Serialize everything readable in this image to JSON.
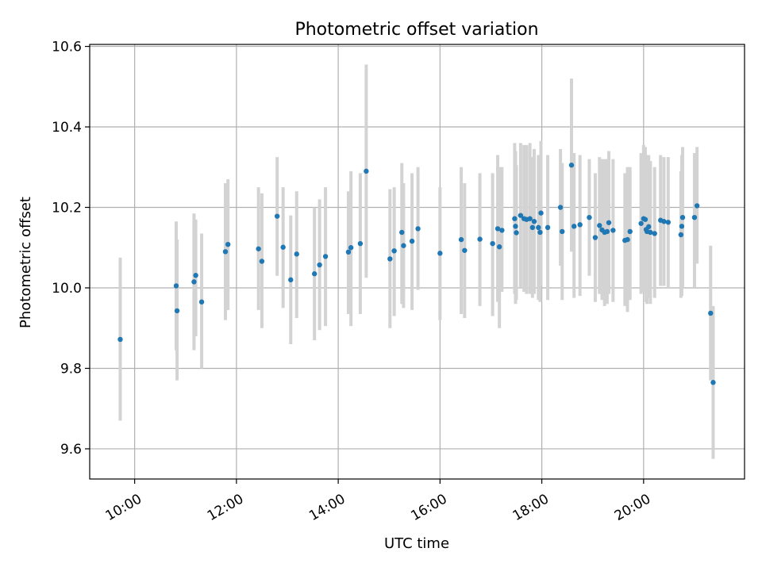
{
  "chart_data": {
    "type": "scatter",
    "title": "Photometric offset variation",
    "xlabel": "UTC time",
    "ylabel": "Photometric offset",
    "xlim": [
      "09:07",
      "21:59"
    ],
    "ylim": [
      9.525,
      10.605
    ],
    "x_ticks": [
      "10:00",
      "12:00",
      "14:00",
      "16:00",
      "18:00",
      "20:00"
    ],
    "y_ticks": [
      "9.6",
      "9.8",
      "10.0",
      "10.2",
      "10.4",
      "10.6"
    ],
    "grid": true,
    "colors": {
      "point": "#1f77b4",
      "error_bar": "#d3d3d3"
    },
    "series": [
      {
        "error_bars": true,
        "points": [
          {
            "x": "09:43",
            "y": 9.872,
            "lo": 9.67,
            "hi": 10.075
          },
          {
            "x": "10:49",
            "y": 10.005,
            "lo": 9.845,
            "hi": 10.165
          },
          {
            "x": "10:50",
            "y": 9.943,
            "lo": 9.77,
            "hi": 10.12
          },
          {
            "x": "11:10",
            "y": 10.015,
            "lo": 9.845,
            "hi": 10.185
          },
          {
            "x": "11:12",
            "y": 10.031,
            "lo": 9.88,
            "hi": 10.17
          },
          {
            "x": "11:19",
            "y": 9.965,
            "lo": 9.8,
            "hi": 10.135
          },
          {
            "x": "11:47",
            "y": 10.09,
            "lo": 9.92,
            "hi": 10.26
          },
          {
            "x": "11:50",
            "y": 10.108,
            "lo": 9.945,
            "hi": 10.27
          },
          {
            "x": "12:26",
            "y": 10.097,
            "lo": 9.945,
            "hi": 10.25
          },
          {
            "x": "12:30",
            "y": 10.066,
            "lo": 9.9,
            "hi": 10.235
          },
          {
            "x": "12:48",
            "y": 10.178,
            "lo": 10.03,
            "hi": 10.325
          },
          {
            "x": "12:55",
            "y": 10.101,
            "lo": 9.95,
            "hi": 10.25
          },
          {
            "x": "13:04",
            "y": 10.02,
            "lo": 9.86,
            "hi": 10.18
          },
          {
            "x": "13:11",
            "y": 10.084,
            "lo": 9.925,
            "hi": 10.24
          },
          {
            "x": "13:32",
            "y": 10.035,
            "lo": 9.87,
            "hi": 10.2
          },
          {
            "x": "13:38",
            "y": 10.057,
            "lo": 9.895,
            "hi": 10.22
          },
          {
            "x": "13:45",
            "y": 10.078,
            "lo": 9.905,
            "hi": 10.25
          },
          {
            "x": "14:12",
            "y": 10.089,
            "lo": 9.935,
            "hi": 10.24
          },
          {
            "x": "14:15",
            "y": 10.1,
            "lo": 9.905,
            "hi": 10.29
          },
          {
            "x": "14:26",
            "y": 10.11,
            "lo": 9.935,
            "hi": 10.285
          },
          {
            "x": "14:33",
            "y": 10.29,
            "lo": 10.025,
            "hi": 10.555
          },
          {
            "x": "15:01",
            "y": 10.072,
            "lo": 9.9,
            "hi": 10.245
          },
          {
            "x": "15:06",
            "y": 10.092,
            "lo": 9.93,
            "hi": 10.25
          },
          {
            "x": "15:15",
            "y": 10.138,
            "lo": 9.96,
            "hi": 10.31
          },
          {
            "x": "15:17",
            "y": 10.105,
            "lo": 9.95,
            "hi": 10.26
          },
          {
            "x": "15:27",
            "y": 10.116,
            "lo": 9.945,
            "hi": 10.285
          },
          {
            "x": "15:34",
            "y": 10.147,
            "lo": 9.995,
            "hi": 10.3
          },
          {
            "x": "16:00",
            "y": 10.086,
            "lo": 9.92,
            "hi": 10.25
          },
          {
            "x": "16:25",
            "y": 10.12,
            "lo": 9.935,
            "hi": 10.3
          },
          {
            "x": "16:29",
            "y": 10.093,
            "lo": 9.925,
            "hi": 10.26
          },
          {
            "x": "16:47",
            "y": 10.121,
            "lo": 9.955,
            "hi": 10.285
          },
          {
            "x": "17:02",
            "y": 10.11,
            "lo": 9.93,
            "hi": 10.285
          },
          {
            "x": "17:08",
            "y": 10.147,
            "lo": 9.965,
            "hi": 10.33
          },
          {
            "x": "17:10",
            "y": 10.102,
            "lo": 9.9,
            "hi": 10.3
          },
          {
            "x": "17:13",
            "y": 10.143,
            "lo": 9.99,
            "hi": 10.3
          },
          {
            "x": "17:28",
            "y": 10.172,
            "lo": 9.985,
            "hi": 10.36
          },
          {
            "x": "17:29",
            "y": 10.153,
            "lo": 9.96,
            "hi": 10.34
          },
          {
            "x": "17:30",
            "y": 10.137,
            "lo": 9.97,
            "hi": 10.305
          },
          {
            "x": "17:35",
            "y": 10.18,
            "lo": 10.0,
            "hi": 10.36
          },
          {
            "x": "17:39",
            "y": 10.172,
            "lo": 9.99,
            "hi": 10.355
          },
          {
            "x": "17:42",
            "y": 10.17,
            "lo": 9.985,
            "hi": 10.355
          },
          {
            "x": "17:46",
            "y": 10.172,
            "lo": 9.985,
            "hi": 10.36
          },
          {
            "x": "17:49",
            "y": 10.15,
            "lo": 9.975,
            "hi": 10.325
          },
          {
            "x": "17:51",
            "y": 10.165,
            "lo": 9.985,
            "hi": 10.345
          },
          {
            "x": "17:56",
            "y": 10.15,
            "lo": 9.97,
            "hi": 10.33
          },
          {
            "x": "17:58",
            "y": 10.138,
            "lo": 9.965,
            "hi": 10.31
          },
          {
            "x": "17:59",
            "y": 10.186,
            "lo": 10.005,
            "hi": 10.365
          },
          {
            "x": "18:07",
            "y": 10.15,
            "lo": 9.97,
            "hi": 10.33
          },
          {
            "x": "18:22",
            "y": 10.2,
            "lo": 10.055,
            "hi": 10.345
          },
          {
            "x": "18:24",
            "y": 10.14,
            "lo": 9.97,
            "hi": 10.31
          },
          {
            "x": "18:35",
            "y": 10.305,
            "lo": 10.09,
            "hi": 10.52
          },
          {
            "x": "18:38",
            "y": 10.153,
            "lo": 9.975,
            "hi": 10.335
          },
          {
            "x": "18:45",
            "y": 10.157,
            "lo": 9.98,
            "hi": 10.33
          },
          {
            "x": "18:56",
            "y": 10.175,
            "lo": 10.03,
            "hi": 10.32
          },
          {
            "x": "19:03",
            "y": 10.125,
            "lo": 9.965,
            "hi": 10.285
          },
          {
            "x": "19:08",
            "y": 10.155,
            "lo": 9.985,
            "hi": 10.325
          },
          {
            "x": "19:11",
            "y": 10.144,
            "lo": 9.97,
            "hi": 10.32
          },
          {
            "x": "19:14",
            "y": 10.138,
            "lo": 9.955,
            "hi": 10.32
          },
          {
            "x": "19:17",
            "y": 10.14,
            "lo": 9.96,
            "hi": 10.32
          },
          {
            "x": "19:19",
            "y": 10.162,
            "lo": 9.985,
            "hi": 10.34
          },
          {
            "x": "19:24",
            "y": 10.143,
            "lo": 9.965,
            "hi": 10.32
          },
          {
            "x": "19:38",
            "y": 10.118,
            "lo": 9.955,
            "hi": 10.285
          },
          {
            "x": "19:41",
            "y": 10.12,
            "lo": 9.94,
            "hi": 10.3
          },
          {
            "x": "19:44",
            "y": 10.14,
            "lo": 9.97,
            "hi": 10.3
          },
          {
            "x": "19:57",
            "y": 10.16,
            "lo": 9.985,
            "hi": 10.335
          },
          {
            "x": "20:00",
            "y": 10.172,
            "lo": 9.99,
            "hi": 10.355
          },
          {
            "x": "20:02",
            "y": 10.17,
            "lo": 9.99,
            "hi": 10.35
          },
          {
            "x": "20:03",
            "y": 10.145,
            "lo": 9.965,
            "hi": 10.33
          },
          {
            "x": "20:04",
            "y": 10.14,
            "lo": 9.96,
            "hi": 10.32
          },
          {
            "x": "20:06",
            "y": 10.152,
            "lo": 9.975,
            "hi": 10.33
          },
          {
            "x": "20:08",
            "y": 10.138,
            "lo": 9.96,
            "hi": 10.315
          },
          {
            "x": "20:13",
            "y": 10.135,
            "lo": 9.975,
            "hi": 10.3
          },
          {
            "x": "20:20",
            "y": 10.168,
            "lo": 10.005,
            "hi": 10.33
          },
          {
            "x": "20:24",
            "y": 10.165,
            "lo": 10.005,
            "hi": 10.325
          },
          {
            "x": "20:29",
            "y": 10.163,
            "lo": 10.0,
            "hi": 10.325
          },
          {
            "x": "20:44",
            "y": 10.132,
            "lo": 9.975,
            "hi": 10.29
          },
          {
            "x": "20:45",
            "y": 10.153,
            "lo": 9.98,
            "hi": 10.33
          },
          {
            "x": "20:46",
            "y": 10.175,
            "lo": 10.0,
            "hi": 10.35
          },
          {
            "x": "21:00",
            "y": 10.175,
            "lo": 10.0,
            "hi": 10.335
          },
          {
            "x": "21:03",
            "y": 10.204,
            "lo": 10.06,
            "hi": 10.35
          },
          {
            "x": "21:19",
            "y": 9.937,
            "lo": 9.77,
            "hi": 10.105
          },
          {
            "x": "21:22",
            "y": 9.765,
            "lo": 9.575,
            "hi": 9.955
          }
        ]
      }
    ]
  }
}
